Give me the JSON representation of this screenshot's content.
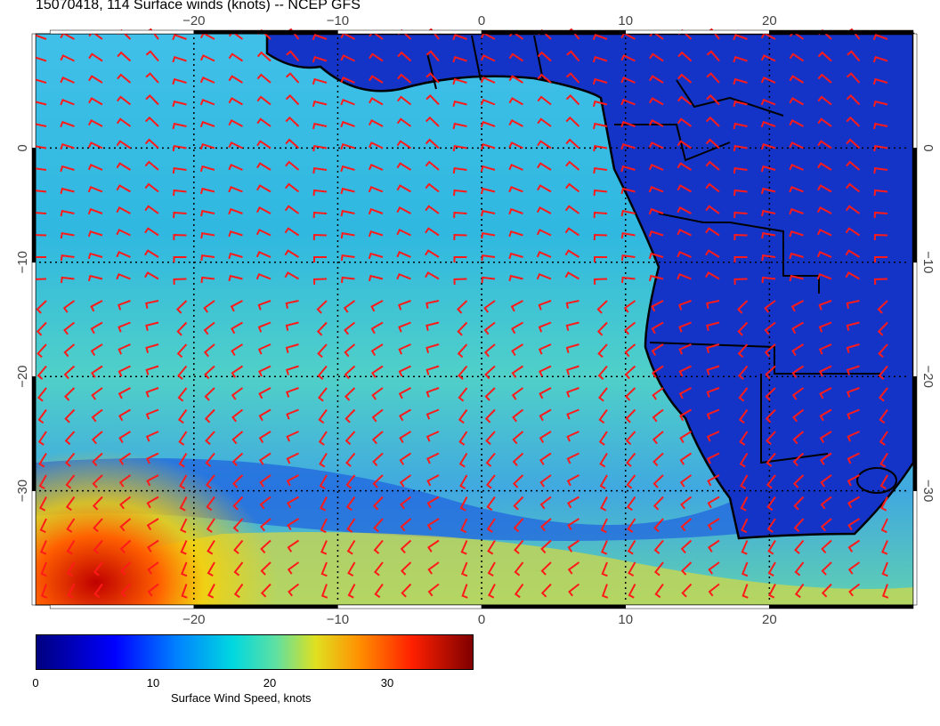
{
  "title": "15070418, 114 Surface winds (knots) -- NCEP GFS",
  "axes": {
    "lon_ticks": [
      "−20",
      "−10",
      "0",
      "10",
      "20"
    ],
    "lat_ticks": [
      "0",
      "−10",
      "−20",
      "−30"
    ]
  },
  "colorbar": {
    "label": "Surface Wind Speed, knots",
    "ticks": [
      "0",
      "10",
      "20",
      "30"
    ],
    "range": [
      0,
      37
    ],
    "colors": [
      "#00007f",
      "#0000ff",
      "#0080ff",
      "#00d8e0",
      "#60e0a0",
      "#e0e020",
      "#ff9000",
      "#ff2000",
      "#7f0000"
    ]
  },
  "map": {
    "lon_range": [
      -31,
      30
    ],
    "lat_range": [
      -40,
      10
    ],
    "land_color": "#1434c8",
    "barb_color": "#ff1a1a",
    "coast_color": "#000000"
  }
}
